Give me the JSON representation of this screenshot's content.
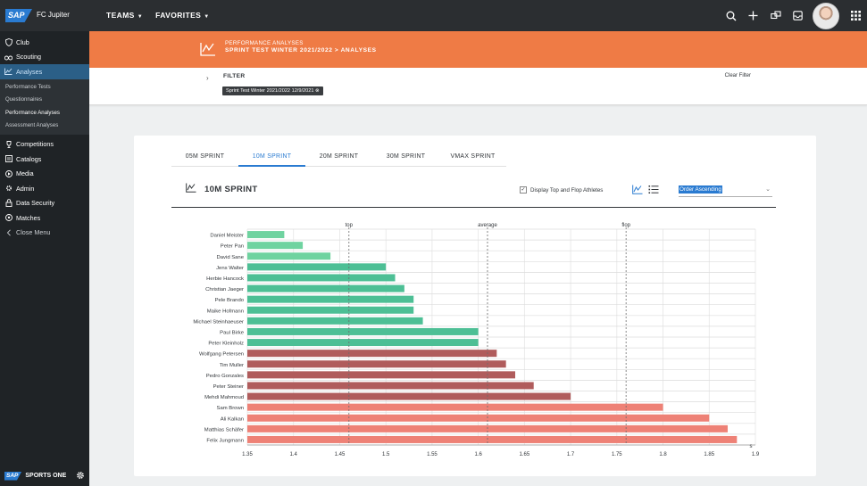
{
  "topbar": {
    "logo": "SAP",
    "app_title": "FC Jupiter",
    "nav": [
      {
        "label": "TEAMS"
      },
      {
        "label": "FAVORITES"
      }
    ],
    "icons": [
      "search-icon",
      "add-icon",
      "switch-icon",
      "inbox-icon",
      "avatar",
      "grid-menu-icon"
    ]
  },
  "sidebar": {
    "items": [
      {
        "label": "Club",
        "icon": "shield-icon"
      },
      {
        "label": "Scouting",
        "icon": "scouting-icon"
      },
      {
        "label": "Analyses",
        "icon": "line-chart-icon",
        "active": true
      }
    ],
    "sub_items": [
      {
        "label": "Performance Tests"
      },
      {
        "label": "Questionnaires"
      },
      {
        "label": "Performance Analyses",
        "current": true
      },
      {
        "label": "Assessment Analyses"
      }
    ],
    "items_after": [
      {
        "label": "Competitions",
        "icon": "trophy-icon"
      },
      {
        "label": "Catalogs",
        "icon": "catalog-icon"
      },
      {
        "label": "Media",
        "icon": "media-icon"
      },
      {
        "label": "Admin",
        "icon": "admin-icon"
      },
      {
        "label": "Data Security",
        "icon": "lock-icon"
      },
      {
        "label": "Matches",
        "icon": "ball-icon"
      },
      {
        "label": "Close Menu",
        "icon": "chevron-left-icon"
      }
    ],
    "footer": {
      "logo": "SAP",
      "product": "SPORTS ONE"
    }
  },
  "header": {
    "subtitle": "PERFORMANCE ANALYSES",
    "breadcrumb": "SPRINT TEST WINTER 2021/2022  >  ANALYSES"
  },
  "filter": {
    "label": "FILTER",
    "chip": "Sprint Test Winter 2021/2022 12/9/2021",
    "clear": "Clear Filter"
  },
  "card": {
    "tabs": [
      {
        "label": "05M SPRINT"
      },
      {
        "label": "10M SPRINT",
        "active": true
      },
      {
        "label": "20M SPRINT"
      },
      {
        "label": "30M SPRINT"
      },
      {
        "label": "VMAX SPRINT"
      }
    ],
    "section_title": "10M SPRINT",
    "checkbox_label": "Display Top and Flop Athletes",
    "order": "Order Ascending"
  },
  "colors": {
    "top": "#6fd3a0",
    "top_mid": "#4dbf95",
    "flop_mid": "#b05c5c",
    "flop": "#ee8176",
    "accent": "#2a7bd1",
    "header": "#ef7b45"
  },
  "chart_data": {
    "type": "bar",
    "orientation": "horizontal",
    "categories": [
      "Daniel Meister",
      "Peter Pan",
      "David Sane",
      "Jens Walter",
      "Herbie Hancock",
      "Christian Jaeger",
      "Pele Brando",
      "Maike Hofmann",
      "Michael Steinhaeuser",
      "Paul Birke",
      "Peter Kleinholz",
      "Wolfgang Petersen",
      "Tim Muller",
      "Pedro Gonzales",
      "Peter Steiner",
      "Mehdi Mahmoud",
      "Sam Brown",
      "Ali Kalkan",
      "Matthias Schäfer",
      "Felix Jungmann"
    ],
    "values": [
      1.39,
      1.41,
      1.44,
      1.5,
      1.51,
      1.52,
      1.53,
      1.53,
      1.54,
      1.6,
      1.6,
      1.62,
      1.63,
      1.64,
      1.66,
      1.7,
      1.8,
      1.85,
      1.87,
      1.88
    ],
    "groups": [
      "top",
      "top",
      "top",
      "top_mid",
      "top_mid",
      "top_mid",
      "top_mid",
      "top_mid",
      "top_mid",
      "top_mid",
      "top_mid",
      "flop_mid",
      "flop_mid",
      "flop_mid",
      "flop_mid",
      "flop_mid",
      "flop",
      "flop",
      "flop",
      "flop"
    ],
    "xlim": [
      1.35,
      1.9
    ],
    "xticks": [
      "1.35",
      "1.4",
      "1.45",
      "1.5",
      "1.55",
      "1.6",
      "1.65",
      "1.7",
      "1.75",
      "1.8",
      "1.85",
      "1.9"
    ],
    "x_unit": "s",
    "reference_lines": [
      {
        "label": "top",
        "value": 1.46
      },
      {
        "label": "average",
        "value": 1.61
      },
      {
        "label": "flop",
        "value": 1.76
      }
    ],
    "grid": true
  }
}
